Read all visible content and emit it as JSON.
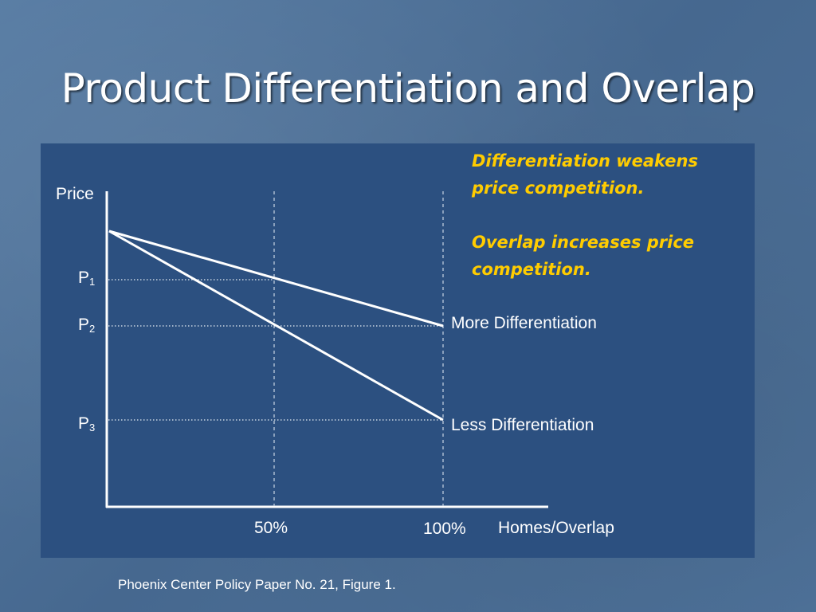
{
  "slide": {
    "title": "Product Differentiation and Overlap",
    "source": "Phoenix Center Policy Paper No. 21, Figure 1."
  },
  "diagram": {
    "y_axis_label": "Price",
    "x_axis_label": "Homes/Overlap",
    "x_tick_50": "50%",
    "x_tick_100": "100%",
    "price_levels": [
      {
        "base": "P",
        "sub": "1"
      },
      {
        "base": "P",
        "sub": "2"
      },
      {
        "base": "P",
        "sub": "3"
      }
    ],
    "curves": {
      "more_differentiation": "More Differentiation",
      "less_differentiation": "Less Differentiation"
    },
    "notes": [
      "Differentiation weakens price competition.",
      "Overlap increases price competition."
    ]
  },
  "colors": {
    "background": "#4a6f98",
    "panel": "#2c5080",
    "line": "#ffffff",
    "note_text": "#ffcc00"
  }
}
